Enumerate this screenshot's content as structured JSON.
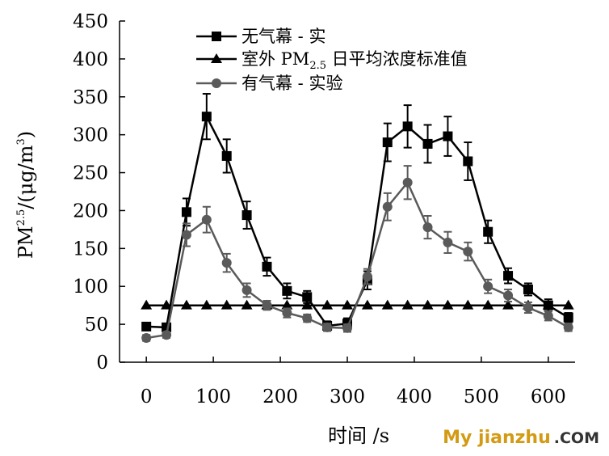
{
  "chart_data": {
    "type": "line",
    "xlabel": "时间 /s",
    "ylabel": "PM2.5/(μg/m3)",
    "ylabel_parts": {
      "main": "PM",
      "sup": "2.5",
      "rest": "/(μg/m",
      "sup2": "3",
      "end": ")"
    },
    "xlim": [
      -40,
      640
    ],
    "ylim": [
      0,
      450
    ],
    "xticks": [
      0,
      100,
      200,
      300,
      400,
      500,
      600
    ],
    "yticks": [
      0,
      50,
      100,
      150,
      200,
      250,
      300,
      350,
      400,
      450
    ],
    "legend_position": "top-center",
    "grid": false,
    "series": [
      {
        "name": "无气幕 - 实",
        "marker": "square",
        "color": "#000000",
        "x": [
          0,
          30,
          60,
          90,
          120,
          150,
          180,
          210,
          240,
          270,
          300,
          330,
          360,
          390,
          420,
          450,
          480,
          510,
          540,
          570,
          600,
          630
        ],
        "y": [
          47,
          46,
          198,
          324,
          272,
          194,
          126,
          94,
          86,
          48,
          51,
          108,
          290,
          311,
          288,
          298,
          265,
          172,
          114,
          96,
          75,
          59
        ],
        "err": [
          4,
          5,
          18,
          30,
          22,
          18,
          12,
          10,
          8,
          6,
          7,
          12,
          25,
          28,
          25,
          26,
          25,
          15,
          10,
          8,
          8,
          6
        ]
      },
      {
        "name": "室外 PM2.5 日平均浓度标准值",
        "legend_main": "室外 PM",
        "legend_sub": "2.5",
        "legend_rest": " 日平均浓度标准值",
        "marker": "triangle",
        "color": "#000000",
        "x": [
          0,
          30,
          60,
          90,
          120,
          150,
          180,
          210,
          240,
          270,
          300,
          330,
          360,
          390,
          420,
          450,
          480,
          510,
          540,
          570,
          600,
          630
        ],
        "y": [
          75,
          75,
          75,
          75,
          75,
          75,
          75,
          75,
          75,
          75,
          75,
          75,
          75,
          75,
          75,
          75,
          75,
          75,
          75,
          75,
          75,
          75
        ]
      },
      {
        "name": "有气幕 - 实验",
        "marker": "circle",
        "color": "#5a5a5a",
        "x": [
          0,
          30,
          60,
          90,
          120,
          150,
          180,
          210,
          240,
          270,
          300,
          330,
          360,
          390,
          420,
          450,
          480,
          510,
          540,
          570,
          600,
          630
        ],
        "y": [
          32,
          36,
          168,
          188,
          131,
          95,
          75,
          65,
          58,
          46,
          45,
          113,
          205,
          237,
          178,
          158,
          146,
          100,
          88,
          72,
          61,
          46
        ],
        "err": [
          4,
          4,
          15,
          17,
          12,
          9,
          6,
          6,
          5,
          5,
          5,
          10,
          18,
          22,
          15,
          14,
          12,
          9,
          8,
          7,
          6,
          5
        ]
      }
    ]
  },
  "watermark": {
    "main": "My jianzhu",
    "domain": ".COM"
  }
}
